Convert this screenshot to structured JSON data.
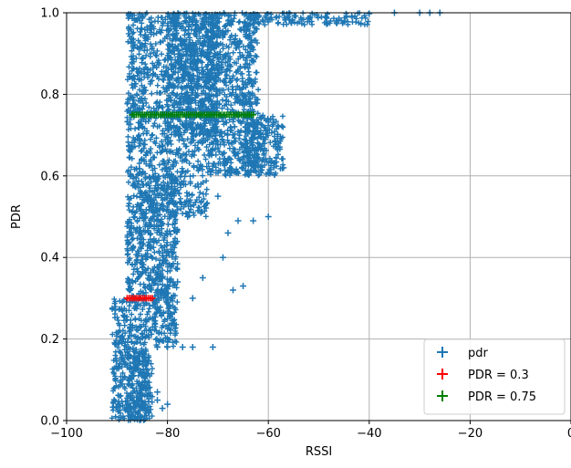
{
  "chart_data": {
    "type": "scatter",
    "title": "",
    "xlabel": "RSSI",
    "ylabel": "PDR",
    "xlim": [
      -100,
      0
    ],
    "ylim": [
      0.0,
      1.0
    ],
    "grid": true,
    "legend_position": "lower-right",
    "x_ticks": [
      "−100",
      "−80",
      "−60",
      "−40",
      "−20",
      "0"
    ],
    "y_ticks": [
      "0.0",
      "0.2",
      "0.4",
      "0.6",
      "0.8",
      "1.0"
    ],
    "series": [
      {
        "name": "pdr",
        "color": "#1f77b4",
        "marker": "plus",
        "regions": [
          {
            "x": [
              -88,
              -84
            ],
            "y": [
              0.0,
              1.0
            ]
          },
          {
            "x": [
              -91,
              -88
            ],
            "y": [
              0.0,
              0.3
            ]
          },
          {
            "x": [
              -88,
              -83
            ],
            "y": [
              0.0,
              0.18
            ]
          },
          {
            "x": [
              -84,
              -78
            ],
            "y": [
              0.18,
              0.6
            ]
          },
          {
            "x": [
              -84,
              -72
            ],
            "y": [
              0.5,
              1.0
            ]
          },
          {
            "x": [
              -80,
              -70
            ],
            "y": [
              0.7,
              1.0
            ]
          },
          {
            "x": [
              -72,
              -62
            ],
            "y": [
              0.6,
              1.0
            ]
          },
          {
            "x": [
              -65,
              -57
            ],
            "y": [
              0.6,
              0.75
            ]
          },
          {
            "x": [
              -65,
              -40
            ],
            "y": [
              0.97,
              1.0
            ]
          }
        ],
        "points": [
          [
            -82,
            0.05
          ],
          [
            -82,
            0.07
          ],
          [
            -81,
            0.03
          ],
          [
            -80,
            0.04
          ],
          [
            -82,
            0.18
          ],
          [
            -80,
            0.18
          ],
          [
            -77,
            0.18
          ],
          [
            -75,
            0.18
          ],
          [
            -71,
            0.18
          ],
          [
            -80,
            0.3
          ],
          [
            -81,
            0.35
          ],
          [
            -78,
            0.34
          ],
          [
            -75,
            0.3
          ],
          [
            -73,
            0.35
          ],
          [
            -67,
            0.32
          ],
          [
            -65,
            0.33
          ],
          [
            -69,
            0.4
          ],
          [
            -68,
            0.46
          ],
          [
            -66,
            0.49
          ],
          [
            -63,
            0.49
          ],
          [
            -60,
            0.5
          ],
          [
            -76,
            0.5
          ],
          [
            -70,
            0.55
          ],
          [
            -57,
            0.62
          ],
          [
            -58,
            0.68
          ],
          [
            -61,
            0.69
          ],
          [
            -63,
            0.71
          ],
          [
            -40,
            0.998
          ],
          [
            -35,
            1.0
          ],
          [
            -30,
            1.0
          ],
          [
            -28,
            1.0
          ],
          [
            -26,
            1.0
          ]
        ]
      },
      {
        "name": "PDR = 0.3",
        "color": "#ff0000",
        "marker": "plus",
        "y": 0.3,
        "x_range": [
          -88,
          -83
        ]
      },
      {
        "name": "PDR = 0.75",
        "color": "#008000",
        "marker": "plus",
        "y": 0.75,
        "x_range": [
          -87,
          -63
        ]
      }
    ]
  }
}
